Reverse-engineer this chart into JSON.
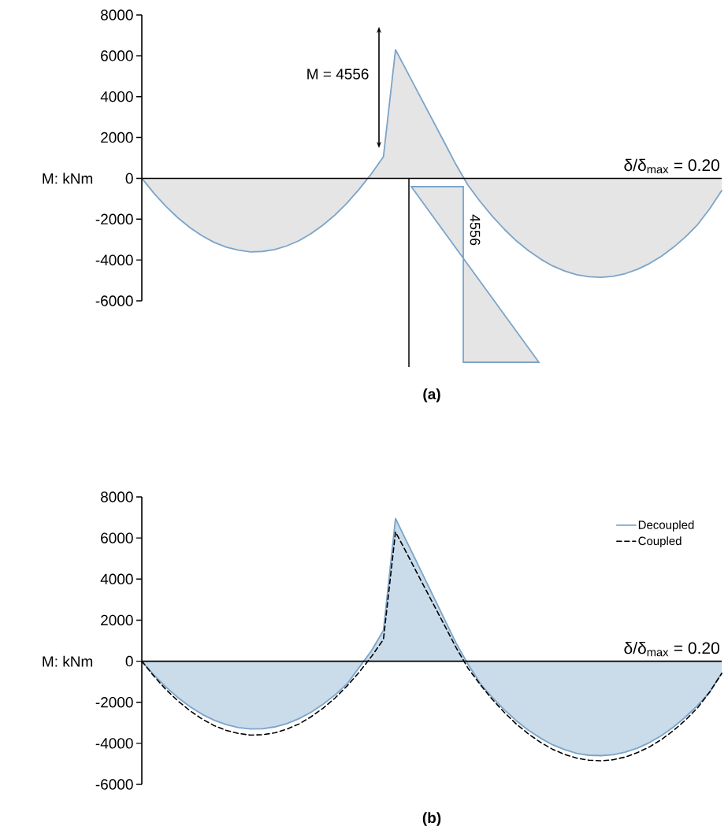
{
  "chart_data": [
    {
      "type": "area",
      "title": "(a)",
      "ylabel": "M: kNm",
      "annotations": [
        "M = 4556",
        "4556",
        "δ/δ$_{max}$ = 0.20"
      ],
      "categories": [
        null,
        null,
        null,
        null,
        null,
        null,
        null,
        null,
        null,
        null,
        null,
        null,
        null,
        null,
        null,
        null,
        null,
        null,
        null,
        null,
        null,
        null,
        null,
        null,
        null,
        null,
        null,
        null,
        null,
        null,
        null,
        null,
        null,
        null,
        null,
        null,
        null,
        null,
        null,
        null,
        null,
        null,
        null,
        null,
        null,
        null,
        null,
        null,
        null
      ],
      "series": [
        {
          "color": "#7ba4c9",
          "values": [
            0,
            -730,
            -1380,
            -1940,
            -2420,
            -2820,
            -3140,
            -3370,
            -3520,
            -3600,
            -3580,
            -3490,
            -3310,
            -3060,
            -2710,
            -2290,
            -1790,
            -1200,
            -530,
            220,
            1060,
            6300,
            5180,
            4050,
            2930,
            1810,
            680,
            -340,
            -1130,
            -1850,
            -2490,
            -3060,
            -3540,
            -3950,
            -4290,
            -4540,
            -4720,
            -4820,
            -4850,
            -4800,
            -4670,
            -4460,
            -4180,
            -3820,
            -3380,
            -2870,
            -2270,
            -1500,
            -600
          ]
        }
      ],
      "ylim": [
        -6000,
        8000
      ],
      "yticks": [
        -6000,
        -4000,
        -2000,
        0,
        2000,
        4000,
        6000,
        8000
      ],
      "tick_labels": "y"
    },
    {
      "type": "area",
      "title": "(b)",
      "ylabel": "M: kNm",
      "annotations": [
        "δ/δ$_{max}$ = 0.20"
      ],
      "categories": [
        null,
        null,
        null,
        null,
        null,
        null,
        null,
        null,
        null,
        null,
        null,
        null,
        null,
        null,
        null,
        null,
        null,
        null,
        null,
        null,
        null,
        null,
        null,
        null,
        null,
        null,
        null,
        null,
        null,
        null,
        null,
        null,
        null,
        null,
        null,
        null,
        null,
        null,
        null,
        null,
        null,
        null,
        null,
        null,
        null,
        null,
        null,
        null,
        null
      ],
      "series": [
        {
          "name": "Decoupled",
          "color": "#7ba4c9",
          "values": [
            0,
            -670,
            -1260,
            -1780,
            -2220,
            -2590,
            -2880,
            -3090,
            -3230,
            -3300,
            -3290,
            -3200,
            -3040,
            -2800,
            -2490,
            -2100,
            -1640,
            -1100,
            -300,
            500,
            1500,
            6950,
            5740,
            4530,
            3320,
            2110,
            900,
            -150,
            -1070,
            -1760,
            -2360,
            -2900,
            -3360,
            -3750,
            -4070,
            -4310,
            -4490,
            -4580,
            -4600,
            -4560,
            -4430,
            -4240,
            -3970,
            -3630,
            -3210,
            -2720,
            -2160,
            -1520,
            -570
          ]
        },
        {
          "name": "Coupled",
          "type": "line",
          "line_style": "dashed",
          "color": "#000000",
          "values": [
            0,
            -730,
            -1380,
            -1940,
            -2420,
            -2820,
            -3140,
            -3370,
            -3520,
            -3600,
            -3580,
            -3490,
            -3310,
            -3060,
            -2710,
            -2290,
            -1790,
            -1200,
            -530,
            220,
            1060,
            6300,
            5180,
            4050,
            2930,
            1810,
            680,
            -340,
            -1130,
            -1850,
            -2490,
            -3060,
            -3540,
            -3950,
            -4290,
            -4540,
            -4720,
            -4820,
            -4850,
            -4800,
            -4670,
            -4460,
            -4180,
            -3820,
            -3380,
            -2870,
            -2270,
            -1500,
            -600
          ]
        }
      ],
      "ylim": [
        -6000,
        8000
      ],
      "yticks": [
        -6000,
        -4000,
        -2000,
        0,
        2000,
        4000,
        6000,
        8000
      ],
      "legend": "top right",
      "tick_labels": "y"
    }
  ]
}
